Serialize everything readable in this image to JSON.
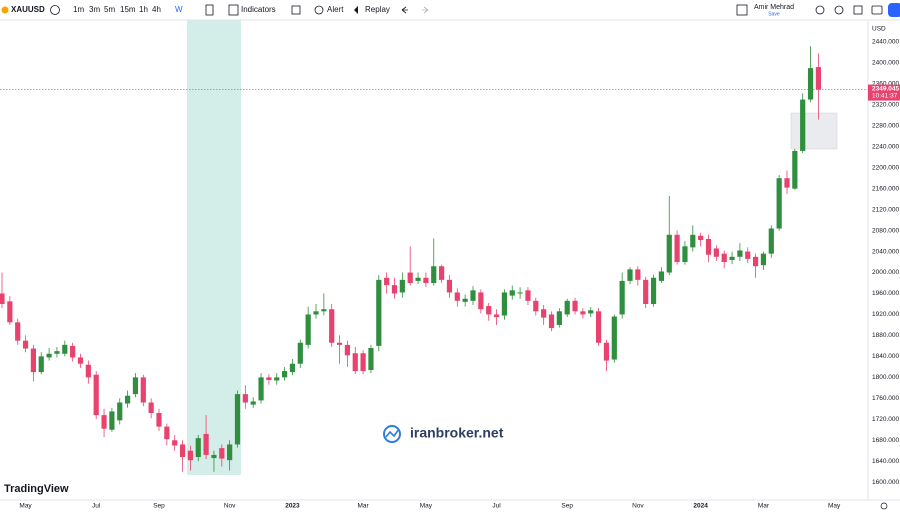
{
  "toolbar": {
    "symbol": "XAUUSD",
    "intervals": [
      "1m",
      "3m",
      "5m",
      "15m",
      "1h",
      "4h",
      "W"
    ],
    "indicators": "Indicators",
    "alert": "Alert",
    "replay": "Replay",
    "user": "Amir Mehrad",
    "save": "Save"
  },
  "watermark": "iranbroker.net",
  "logo": "TradingView",
  "chart_data": {
    "type": "candlestick",
    "currency": "USD",
    "up_color": "#2f8f3f",
    "down_color": "#e8436f",
    "categories": [
      null,
      null,
      null,
      "May",
      null,
      null,
      null,
      null,
      null,
      null,
      null,
      null,
      "Jul",
      null,
      null,
      null,
      null,
      null,
      null,
      null,
      "Sep",
      null,
      null,
      null,
      null,
      null,
      null,
      null,
      null,
      "Nov",
      null,
      null,
      null,
      null,
      null,
      null,
      null,
      "2023",
      null,
      null,
      null,
      null,
      null,
      null,
      null,
      null,
      "Mar",
      null,
      null,
      null,
      null,
      null,
      null,
      null,
      "May",
      null,
      null,
      null,
      null,
      null,
      null,
      null,
      null,
      "Jul",
      null,
      null,
      null,
      null,
      null,
      null,
      null,
      null,
      "Sep",
      null,
      null,
      null,
      null,
      null,
      null,
      null,
      null,
      "Nov",
      null,
      null,
      null,
      null,
      null,
      null,
      null,
      "2024",
      null,
      null,
      null,
      null,
      null,
      null,
      null,
      "Mar",
      null,
      null,
      null,
      null,
      null,
      null,
      null,
      null,
      "May"
    ],
    "open": [
      1960,
      1945,
      1905,
      1870,
      1855,
      1810,
      1838,
      1845,
      1845,
      1860,
      1838,
      1824,
      1805,
      1728,
      1700,
      1718,
      1750,
      1768,
      1800,
      1752,
      1732,
      1706,
      1680,
      1672,
      1660,
      1648,
      1692,
      1646,
      1665,
      1642,
      1672,
      1768,
      1748,
      1756,
      1800,
      1794,
      1800,
      1810,
      1826,
      1862,
      1920,
      1926,
      1930,
      1866,
      1862,
      1846,
      1846,
      1814,
      1860,
      1990,
      1976,
      1962,
      2000,
      1984,
      1990,
      1980,
      2012,
      1986,
      1962,
      1944,
      1946,
      1962,
      1936,
      1920,
      1918,
      1956,
      1960,
      1966,
      1946,
      1930,
      1920,
      1900,
      1920,
      1946,
      1926,
      1922,
      1926,
      1866,
      1834,
      1920,
      1984,
      2006,
      1986,
      1940,
      1984,
      2000,
      2072,
      2020,
      2048,
      2070,
      2064,
      2046,
      2036,
      2024,
      2030,
      2040,
      2030,
      2014,
      2036,
      2084,
      2180,
      2160,
      2232,
      2330,
      2392,
      null,
      null
    ],
    "high": [
      2000,
      1955,
      1912,
      1880,
      1862,
      1848,
      1856,
      1858,
      1870,
      1866,
      1845,
      1832,
      1812,
      1740,
      1742,
      1760,
      1775,
      1808,
      1805,
      1760,
      1740,
      1712,
      1690,
      1680,
      1670,
      1690,
      1728,
      1660,
      1672,
      1680,
      1775,
      1785,
      1762,
      1808,
      1806,
      1808,
      1820,
      1835,
      1872,
      1935,
      1940,
      1960,
      1940,
      1880,
      1870,
      1858,
      1852,
      1862,
      1995,
      2000,
      1990,
      2000,
      2050,
      2000,
      2000,
      2065,
      2015,
      1995,
      1970,
      1958,
      1974,
      1968,
      1942,
      1930,
      1968,
      1975,
      1972,
      1972,
      1952,
      1938,
      1926,
      1932,
      1950,
      1952,
      1932,
      1934,
      1932,
      1872,
      1920,
      2000,
      2010,
      2012,
      1992,
      1996,
      2010,
      2146,
      2080,
      2060,
      2090,
      2076,
      2072,
      2052,
      2042,
      2040,
      2056,
      2048,
      2036,
      2040,
      2090,
      2186,
      2195,
      2236,
      2342,
      2432,
      2418,
      null,
      null
    ],
    "low": [
      1932,
      1900,
      1862,
      1848,
      1792,
      1806,
      1832,
      1838,
      1840,
      1830,
      1818,
      1788,
      1720,
      1686,
      1696,
      1710,
      1742,
      1762,
      1745,
      1722,
      1698,
      1670,
      1660,
      1620,
      1622,
      1640,
      1644,
      1620,
      1630,
      1622,
      1666,
      1740,
      1742,
      1750,
      1786,
      1786,
      1794,
      1804,
      1818,
      1855,
      1912,
      1918,
      1858,
      1826,
      1820,
      1806,
      1806,
      1808,
      1850,
      1960,
      1950,
      1952,
      1975,
      1978,
      1972,
      1975,
      1980,
      1952,
      1935,
      1935,
      1938,
      1922,
      1908,
      1900,
      1910,
      1948,
      1950,
      1938,
      1918,
      1900,
      1888,
      1895,
      1915,
      1920,
      1912,
      1915,
      1860,
      1812,
      1828,
      1912,
      1978,
      1975,
      1932,
      1935,
      1980,
      1995,
      2015,
      2015,
      2040,
      2050,
      2020,
      2022,
      2008,
      2016,
      2022,
      2018,
      1990,
      2005,
      2028,
      2080,
      2150,
      2158,
      2228,
      2325,
      2292,
      null,
      null
    ],
    "close": [
      1940,
      1905,
      1870,
      1855,
      1810,
      1840,
      1845,
      1850,
      1862,
      1838,
      1826,
      1800,
      1728,
      1702,
      1735,
      1752,
      1765,
      1800,
      1752,
      1732,
      1706,
      1682,
      1670,
      1648,
      1642,
      1684,
      1652,
      1652,
      1645,
      1672,
      1768,
      1752,
      1754,
      1800,
      1795,
      1800,
      1812,
      1826,
      1866,
      1920,
      1926,
      1930,
      1866,
      1862,
      1842,
      1812,
      1812,
      1856,
      1986,
      1976,
      1960,
      1986,
      1980,
      1990,
      1980,
      2012,
      1986,
      1962,
      1946,
      1950,
      1966,
      1930,
      1920,
      1915,
      1962,
      1966,
      1962,
      1946,
      1926,
      1914,
      1894,
      1926,
      1946,
      1926,
      1920,
      1928,
      1866,
      1832,
      1916,
      1984,
      2006,
      1986,
      1940,
      1990,
      2002,
      2072,
      2020,
      2050,
      2072,
      2062,
      2034,
      2030,
      2020,
      2030,
      2042,
      2026,
      2012,
      2036,
      2084,
      2180,
      2162,
      2232,
      2330,
      2390,
      2349,
      null,
      null
    ],
    "last_price": {
      "value": 2349.045,
      "label": "2349.045"
    },
    "countdown": "10:41:37",
    "ylim": [
      1566,
      2478
    ],
    "yticks": [
      {
        "value": 1600,
        "label": "1600.000"
      },
      {
        "value": 1640,
        "label": "1640.000"
      },
      {
        "value": 1680,
        "label": "1680.000"
      },
      {
        "value": 1720,
        "label": "1720.000"
      },
      {
        "value": 1760,
        "label": "1760.000"
      },
      {
        "value": 1800,
        "label": "1800.000"
      },
      {
        "value": 1840,
        "label": "1840.000"
      },
      {
        "value": 1880,
        "label": "1880.000"
      },
      {
        "value": 1920,
        "label": "1920.000"
      },
      {
        "value": 1960,
        "label": "1960.000"
      },
      {
        "value": 2000,
        "label": "2000.000"
      },
      {
        "value": 2040,
        "label": "2040.000"
      },
      {
        "value": 2080,
        "label": "2080.000"
      },
      {
        "value": 2120,
        "label": "2120.000"
      },
      {
        "value": 2160,
        "label": "2160.000"
      },
      {
        "value": 2200,
        "label": "2200.000"
      },
      {
        "value": 2240,
        "label": "2240.000"
      },
      {
        "value": 2280,
        "label": "2280.000"
      },
      {
        "value": 2320,
        "label": "2320.000"
      },
      {
        "value": 2360,
        "label": "2360.000"
      },
      {
        "value": 2400,
        "label": "2400.000"
      },
      {
        "value": 2440,
        "label": "2440.000"
      }
    ],
    "grid": false
  }
}
